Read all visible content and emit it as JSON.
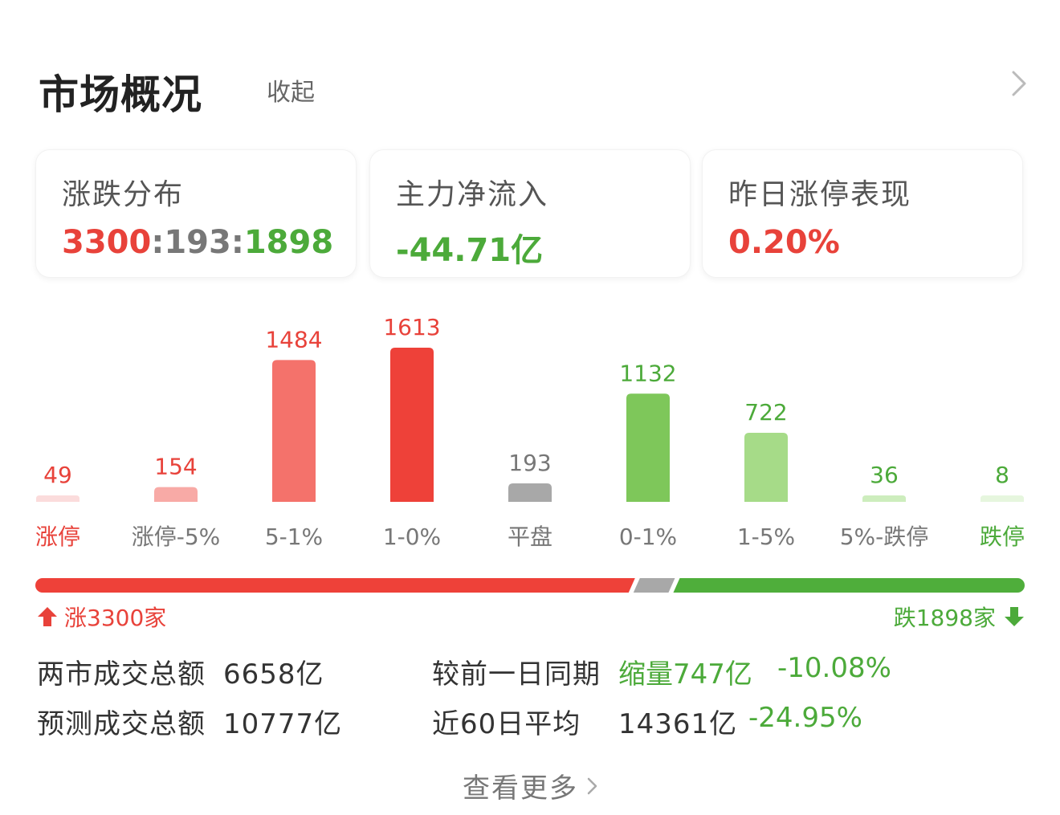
{
  "header": {
    "title": "市场概况",
    "collapse_label": "收起"
  },
  "cards": [
    {
      "label": "涨跌分布",
      "value_parts": [
        "3300",
        ":",
        "193",
        ":",
        "1898"
      ]
    },
    {
      "label": "主力净流入",
      "value": "-44.71亿"
    },
    {
      "label": "昨日涨停表现",
      "value": "0.20%"
    }
  ],
  "chart_data": {
    "type": "bar",
    "categories": [
      "涨停",
      "涨停-5%",
      "5-1%",
      "1-0%",
      "平盘",
      "0-1%",
      "1-5%",
      "5%-跌停",
      "跌停"
    ],
    "values": [
      49,
      154,
      1484,
      1613,
      193,
      1132,
      722,
      36,
      8
    ],
    "data_labels": [
      "49",
      "154",
      "1484",
      "1613",
      "193",
      "1132",
      "722",
      "36",
      "8"
    ],
    "bar_colors": [
      "#fbdcdc",
      "#f8aaa6",
      "#f4726b",
      "#ee4139",
      "#a8a8a8",
      "#7ec75a",
      "#a6db88",
      "#cdedbd",
      "#e6f6de"
    ],
    "label_colors": [
      "#e8423a",
      "#777777",
      "#777777",
      "#777777",
      "#777777",
      "#777777",
      "#777777",
      "#777777",
      "#4caa3a"
    ],
    "value_colors": [
      "#e8423a",
      "#e8423a",
      "#e8423a",
      "#e8423a",
      "#777777",
      "#4caa3a",
      "#4caa3a",
      "#4caa3a",
      "#4caa3a"
    ]
  },
  "ratio": {
    "up": 3300,
    "flat": 193,
    "down": 1898,
    "up_color": "#ee4139",
    "flat_color": "#a8a8a8",
    "down_color": "#4fae3b"
  },
  "summary": {
    "up_text": "涨3300家",
    "down_text": "跌1898家",
    "up_icon": "arrow-up-icon",
    "down_icon": "arrow-down-icon"
  },
  "stats": {
    "row1": {
      "label": "两市成交总额",
      "value": "6658亿",
      "compare_label": "较前一日同期",
      "compare_value": "缩量747亿",
      "compare_pct": "-10.08%"
    },
    "row2": {
      "label": "预测成交总额",
      "value": "10777亿",
      "compare_label": "近60日平均",
      "compare_value": "14361亿",
      "compare_pct": "-24.95%"
    }
  },
  "footer": {
    "more_label": "查看更多"
  },
  "colors": {
    "red": "#e8423a",
    "green": "#4caa3a",
    "gray": "#777777"
  }
}
